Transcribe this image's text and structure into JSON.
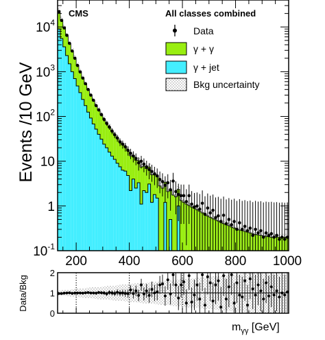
{
  "chart_data": [
    {
      "type": "histogram",
      "yscale": "log",
      "xlim": [
        130,
        1000
      ],
      "ylim": [
        0.1,
        40000
      ],
      "xticks": [
        200,
        400,
        600,
        800,
        1000
      ],
      "yticks": [
        {
          "value": 0.1,
          "base": "10",
          "exp": "-1"
        },
        {
          "value": 1,
          "base": "1",
          "exp": ""
        },
        {
          "value": 10,
          "base": "10",
          "exp": ""
        },
        {
          "value": 100,
          "base": "10",
          "exp": "2"
        },
        {
          "value": 1000,
          "base": "10",
          "exp": "3"
        },
        {
          "value": 10000,
          "base": "10",
          "exp": "4"
        }
      ],
      "ylabel": "Events /10 GeV",
      "experiment_label": "CMS",
      "category_label": "All classes combined",
      "bin_edges": [
        130,
        140,
        150,
        160,
        170,
        180,
        190,
        200,
        210,
        220,
        230,
        240,
        250,
        260,
        270,
        280,
        290,
        300,
        310,
        320,
        330,
        340,
        350,
        360,
        370,
        380,
        390,
        400,
        410,
        420,
        430,
        440,
        450,
        460,
        470,
        480,
        490,
        500,
        510,
        520,
        530,
        540,
        550,
        560,
        570,
        580,
        590,
        600,
        610,
        620,
        630,
        640,
        650,
        660,
        670,
        680,
        690,
        700,
        710,
        720,
        730,
        740,
        750,
        760,
        770,
        780,
        790,
        800,
        810,
        820,
        830,
        840,
        850,
        860,
        870,
        880,
        890,
        900,
        910,
        920,
        930,
        940,
        950,
        960,
        970,
        980,
        990,
        1000
      ],
      "legend": {
        "position": "top-right",
        "entries": [
          {
            "label": "Data",
            "kind": "marker"
          },
          {
            "label": "γ + γ",
            "kind": "fill",
            "color": "#99ee11"
          },
          {
            "label": "γ + jet",
            "kind": "fill",
            "color": "#44eeff"
          },
          {
            "label": "Bkg uncertainty",
            "kind": "hatch"
          }
        ]
      },
      "series": [
        {
          "name": "γ + jet",
          "color": "#44eeff",
          "values": [
            9000,
            5500,
            3600,
            2300,
            1500,
            1000,
            700,
            480,
            340,
            240,
            175,
            125,
            92,
            68,
            52,
            40,
            31,
            24,
            20,
            16,
            13,
            11,
            9,
            7.5,
            6.3,
            6,
            4.8,
            2.2,
            4,
            2.5,
            3.3,
            1.1,
            2.2,
            2,
            3.1,
            1.2,
            1.8,
            1.5,
            0.1,
            0.1,
            1.2,
            0.1,
            0.5,
            0.1,
            0.1,
            1,
            0.1,
            0.1,
            0.1,
            0.1,
            0.1,
            0.1,
            0.1,
            0.1,
            0.1,
            0.1,
            0.1,
            0.1,
            0.1,
            0.1,
            0.1,
            0.1,
            0.1,
            0.1,
            0.1,
            0.1,
            0.1,
            0.1,
            0.1,
            0.1,
            0.1,
            0.1,
            0.1,
            0.1,
            0.1,
            0.1,
            0.1,
            0.1,
            0.1,
            0.1,
            0.1,
            0.1,
            0.1,
            0.1,
            0.1,
            0.1,
            0.1
          ]
        },
        {
          "name": "γ + γ",
          "color": "#99ee11",
          "values": [
            14000,
            9000,
            6000,
            4000,
            2700,
            1850,
            1300,
            900,
            650,
            480,
            360,
            270,
            210,
            160,
            125,
            97,
            78,
            62,
            50,
            41,
            34,
            28,
            23,
            20,
            17,
            15,
            12.5,
            11,
            9.5,
            8,
            7,
            6.3,
            5.5,
            4.8,
            4.3,
            3.8,
            3.4,
            3,
            2.7,
            2.4,
            2.2,
            2,
            1.8,
            1.65,
            1.5,
            1.35,
            1.22,
            1.1,
            1.0,
            0.92,
            0.85,
            0.78,
            0.72,
            0.66,
            0.6,
            0.55,
            0.5,
            0.46,
            0.42,
            0.39,
            0.36,
            0.33,
            0.3,
            0.28,
            0.26,
            0.24,
            0.22,
            0.2,
            0.19,
            0.18,
            0.17,
            0.16,
            0.15,
            0.14,
            0.13,
            0.125,
            0.12,
            0.115,
            0.11,
            0.105,
            0.1,
            0.1,
            0.1,
            0.1,
            0.1,
            0.1,
            0.1
          ]
        },
        {
          "name": "Data",
          "kind": "points",
          "values": [
            22000,
            14000,
            9500,
            6500,
            4300,
            2900,
            2000,
            1380,
            990,
            720,
            540,
            400,
            300,
            230,
            175,
            140,
            110,
            86,
            70,
            58,
            47,
            39,
            33,
            27,
            24,
            21,
            17.5,
            15,
            13,
            11.5,
            9.2,
            10,
            8.6,
            7.5,
            6.5,
            5.9,
            5.2,
            4.7,
            3.9,
            3.5,
            2.9,
            3.3,
            2.3,
            3.6,
            2.1,
            1.8,
            1.7,
            1.7,
            1.25,
            1.7,
            1.1,
            0.95,
            1,
            0.85,
            1.15,
            0.65,
            0.9,
            0.7,
            0.8,
            0.55,
            0.6,
            0.45,
            0.62,
            0.4,
            0.5,
            0.38,
            0.45,
            0.3,
            0.42,
            0.3,
            0.35,
            0.28,
            0.32,
            0.22,
            0.3,
            0.25,
            0.28,
            0.2,
            0.25,
            0.22,
            0.24,
            0.2,
            0.22,
            0.18,
            0.2,
            0.18,
            0.2
          ]
        }
      ]
    },
    {
      "type": "scatter",
      "ylim": [
        0,
        2
      ],
      "yticks": [
        0,
        1,
        2
      ],
      "xlim": [
        130,
        1000
      ],
      "ylabel": "Data/Bkg",
      "xlabel_main": "m",
      "xlabel_sub": "γγ",
      "xlabel_unit": " [GeV]",
      "reference_line": 1,
      "dotted_lines_x": [
        200,
        400,
        600
      ],
      "ratio_values": [
        0.97,
        0.97,
        0.99,
        1.0,
        1.01,
        0.98,
        1.0,
        1.0,
        1.0,
        0.99,
        1.01,
        1.02,
        1.0,
        1.0,
        0.99,
        1.02,
        1.01,
        1.0,
        0.96,
        1.02,
        1.0,
        0.98,
        1.03,
        0.99,
        1.0,
        0.98,
        0.97,
        1.15,
        0.97,
        1.1,
        0.88,
        1.4,
        0.95,
        1.1,
        0.88,
        1.18,
        1.0,
        1.05,
        1.4,
        1.45,
        0.85,
        1.65,
        0.95,
        1.9,
        1.4,
        0.75,
        1.4,
        1.55,
        0.5,
        1.85,
        0.55,
        0.9,
        1.4,
        0.7,
        1.9,
        0.4,
        1.8,
        1.5,
        0.6,
        1.4,
        1.6,
        0.3,
        1.85,
        0.7,
        1.3,
        1.9,
        0.5,
        1.5,
        0.9,
        0.8,
        1.6,
        0.4,
        1.7,
        1.2,
        0.9,
        1.4,
        1.1,
        0.7,
        1.5,
        0.85,
        1.3,
        0.9,
        1.1,
        0.8,
        1.0,
        0.9,
        1.05
      ],
      "ratio_errors": [
        0.01,
        0.01,
        0.012,
        0.013,
        0.015,
        0.018,
        0.022,
        0.027,
        0.03,
        0.035,
        0.04,
        0.045,
        0.05,
        0.06,
        0.07,
        0.075,
        0.08,
        0.09,
        0.1,
        0.11,
        0.12,
        0.13,
        0.15,
        0.16,
        0.17,
        0.18,
        0.2,
        0.22,
        0.24,
        0.26,
        0.28,
        0.3,
        0.32,
        0.34,
        0.36,
        0.38,
        0.4,
        0.42,
        0.44,
        0.46,
        0.48,
        0.5,
        0.52,
        0.55,
        0.58,
        0.6,
        0.62,
        0.65,
        0.68,
        0.7,
        0.72,
        0.75,
        0.78,
        0.8,
        0.82,
        0.85,
        0.88,
        0.9,
        0.92,
        0.95,
        0.98,
        1.0,
        1.0,
        1.0,
        1.0,
        1.0,
        1.0,
        1.0,
        1.0,
        1.0,
        1.0,
        1.0,
        1.0,
        1.0,
        1.0,
        1.0,
        1.0,
        1.0,
        1.0,
        1.0,
        1.0,
        1.0,
        1.0,
        1.0,
        1.0,
        1.0,
        1.0
      ]
    }
  ]
}
